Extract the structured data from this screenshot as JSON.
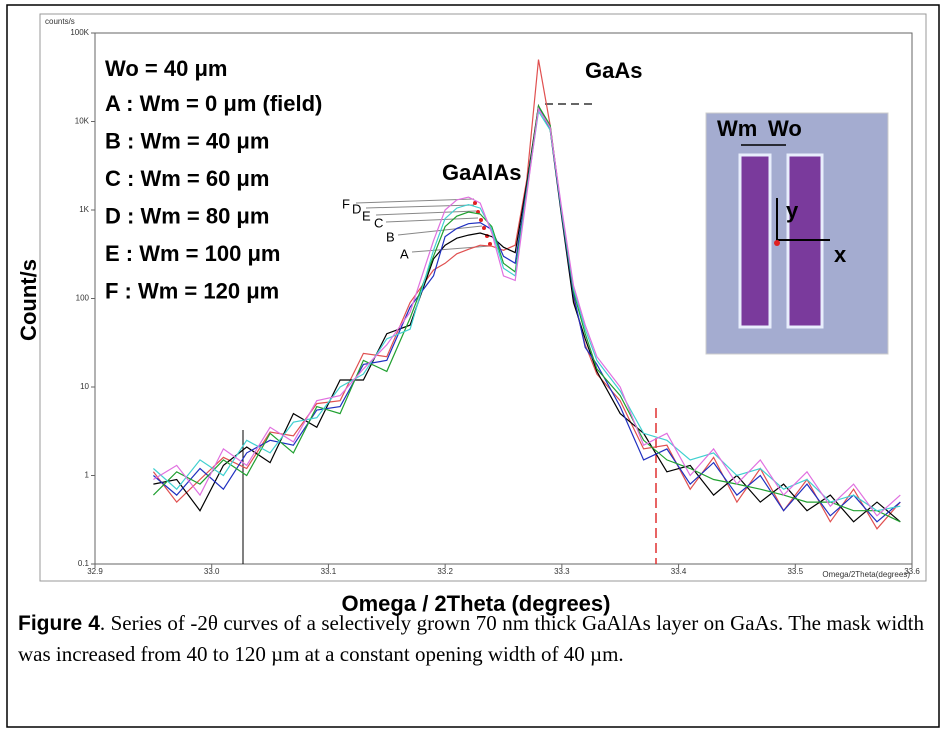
{
  "chart_data": {
    "type": "line",
    "y_unit": "counts/s",
    "x_unit": "Omega/2Theta(degrees)",
    "xlabel": "Omega / 2Theta (degrees)",
    "ylabel": "Count/s",
    "log_y": true,
    "grid": false,
    "legend_header": "Wo = 40 μm",
    "annotations": [
      "GaAs",
      "GaAlAs"
    ],
    "peak_labels": [
      "F",
      "D",
      "E",
      "C",
      "B",
      "A"
    ],
    "inset_labels": [
      "Wm",
      "Wo",
      "y",
      "x"
    ],
    "xlim": [
      32.9,
      33.6
    ],
    "xticks": [
      32.9,
      {
        "value": 33.0,
        "label": "33.0"
      },
      33.1,
      33.2,
      33.3,
      33.4,
      33.5,
      33.6
    ],
    "ylim": [
      0.1,
      100000
    ],
    "yticks": [
      0.1,
      1,
      10,
      100,
      {
        "value": 1000,
        "label": "1K"
      },
      {
        "value": 10000,
        "label": "10K"
      },
      {
        "value": 100000,
        "label": "100K"
      }
    ],
    "x": [
      32.95,
      32.97,
      32.99,
      33.01,
      33.03,
      33.05,
      33.07,
      33.09,
      33.11,
      33.13,
      33.15,
      33.17,
      33.19,
      33.2,
      33.21,
      33.22,
      33.23,
      33.24,
      33.25,
      33.26,
      33.27,
      33.28,
      33.29,
      33.3,
      33.31,
      33.32,
      33.33,
      33.35,
      33.37,
      33.39,
      33.41,
      33.43,
      33.45,
      33.47,
      33.49,
      33.51,
      33.53,
      33.55,
      33.57,
      33.59
    ],
    "series": [
      {
        "name": "A : Wm = 0 μm (field)",
        "color": "#e05050",
        "values": [
          1.1,
          0.5,
          0.9,
          1.6,
          1.2,
          3.1,
          2.8,
          6.5,
          7,
          24,
          22,
          90,
          210,
          250,
          320,
          360,
          400,
          390,
          350,
          400,
          2200,
          50000,
          9000,
          900,
          100,
          30,
          14,
          7,
          2,
          2.2,
          0.7,
          1.6,
          0.5,
          1.2,
          0.4,
          0.9,
          0.3,
          0.7,
          0.25,
          0.5
        ]
      },
      {
        "name": "B : Wm = 40 μm",
        "color": "#000000",
        "values": [
          0.8,
          0.9,
          0.4,
          1.3,
          2.1,
          1.4,
          5,
          3.5,
          12,
          12,
          40,
          50,
          280,
          400,
          480,
          520,
          550,
          500,
          380,
          330,
          2000,
          15000,
          8000,
          800,
          90,
          35,
          15,
          5,
          3,
          1.1,
          1.3,
          0.6,
          1.0,
          0.5,
          0.8,
          0.4,
          0.6,
          0.3,
          0.5,
          0.3
        ]
      },
      {
        "name": "C : Wm = 60 μm",
        "color": "#2030c0",
        "values": [
          1,
          0.6,
          1.2,
          0.7,
          1.8,
          2.5,
          2.2,
          5.5,
          6,
          18,
          20,
          80,
          180,
          500,
          620,
          700,
          720,
          600,
          300,
          250,
          1800,
          14000,
          8500,
          850,
          110,
          28,
          18,
          6,
          1.5,
          2,
          0.8,
          1.4,
          0.6,
          1.0,
          0.4,
          0.8,
          0.35,
          0.6,
          0.3,
          0.5
        ]
      },
      {
        "name": "D : Wm = 80 μm",
        "color": "#20a030",
        "values": [
          0.6,
          1.1,
          0.8,
          1.5,
          1.0,
          3,
          1.8,
          6,
          5,
          20,
          15,
          60,
          300,
          650,
          850,
          950,
          900,
          650,
          250,
          200,
          1700,
          15000,
          9000,
          900,
          120,
          40,
          16,
          8,
          2.5,
          1.5,
          1.2,
          0.9,
          0.8,
          0.7,
          0.6,
          0.5,
          0.5,
          0.4,
          0.4,
          0.3
        ]
      },
      {
        "name": "E : Wm = 100 μm",
        "color": "#40d0d0",
        "values": [
          1.2,
          0.7,
          1.5,
          1,
          2.5,
          1.8,
          4,
          4.5,
          10,
          14,
          35,
          45,
          350,
          800,
          1050,
          1150,
          1050,
          600,
          220,
          180,
          1600,
          13000,
          8000,
          950,
          130,
          45,
          20,
          9,
          3,
          2.5,
          1.5,
          1.8,
          1.0,
          1.2,
          0.7,
          0.9,
          0.5,
          0.6,
          0.4,
          0.45
        ]
      },
      {
        "name": "F : Wm = 120 μm",
        "color": "#e070e0",
        "values": [
          0.9,
          1.3,
          0.6,
          2,
          1.3,
          3.5,
          2.4,
          7,
          8,
          16,
          30,
          70,
          450,
          1000,
          1300,
          1400,
          1200,
          550,
          180,
          160,
          1500,
          14000,
          8500,
          1000,
          140,
          50,
          22,
          10,
          2.2,
          3,
          1,
          2,
          0.8,
          1.5,
          0.6,
          1.1,
          0.45,
          0.8,
          0.35,
          0.6
        ]
      }
    ]
  },
  "figure_caption": {
    "label": "Figure 4",
    "text": ". Series of -2θ curves of a selectively grown 70 nm thick GaAlAs layer on GaAs. The mask width was increased from 40 to 120 µm at a constant opening width of 40 µm."
  }
}
